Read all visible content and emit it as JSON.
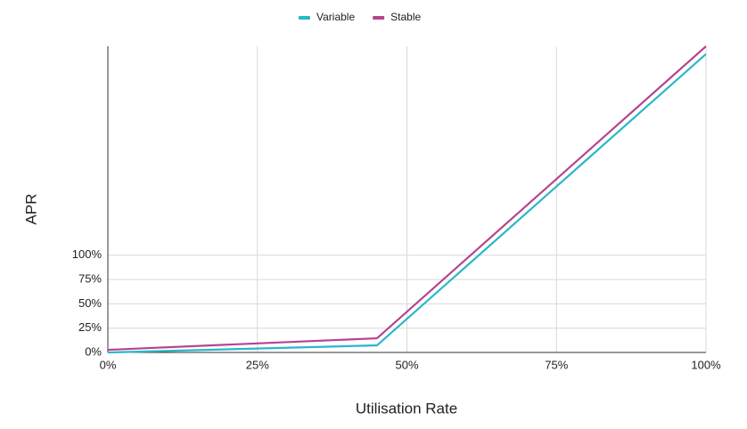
{
  "chart_data": {
    "type": "line",
    "x_label": "Utilisation Rate",
    "y_label": "APR",
    "x": [
      0,
      45,
      100
    ],
    "series": [
      {
        "name": "Variable",
        "color": "#2ab7c9",
        "values": [
          0,
          7.3,
          307
        ]
      },
      {
        "name": "Stable",
        "color": "#b5448f",
        "values": [
          2.7,
          14.6,
          315
        ]
      }
    ],
    "xlim": [
      0,
      100
    ],
    "ylim": [
      0,
      315
    ],
    "xticks": [
      {
        "value": 0,
        "label": "0%"
      },
      {
        "value": 25,
        "label": "25%"
      },
      {
        "value": 50,
        "label": "50%"
      },
      {
        "value": 75,
        "label": "75%"
      },
      {
        "value": 100,
        "label": "100%"
      }
    ],
    "yticks": [
      {
        "value": 0,
        "label": "0%"
      },
      {
        "value": 25,
        "label": "25%"
      },
      {
        "value": 50,
        "label": "50%"
      },
      {
        "value": 75,
        "label": "75%"
      },
      {
        "value": 100,
        "label": "100%"
      }
    ],
    "grid": true,
    "legend": "top"
  }
}
